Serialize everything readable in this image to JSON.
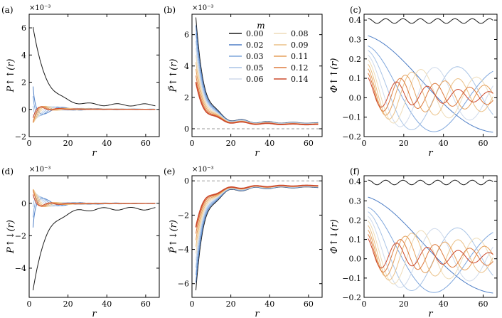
{
  "chart_data": [
    {
      "id": "a",
      "panel_label": "(a)",
      "type": "line",
      "ylabel": "P↑↑(r)",
      "xlabel": "r",
      "xlim": [
        0,
        67
      ],
      "ylim": [
        -2,
        7
      ],
      "xticks": [
        "0",
        "20",
        "40",
        "60"
      ],
      "yticks": [
        "−2",
        "0",
        "2",
        "4",
        "6"
      ],
      "sci": "×10⁻³",
      "model": "corr",
      "params": {
        "amp0": 6.0,
        "gamma": 1.4,
        "k0": 0.3,
        "kstep": 0.37,
        "tail": 0.33,
        "osc": 0.5
      }
    },
    {
      "id": "b",
      "panel_label": "(b)",
      "type": "line",
      "ylabel": "P̃↑↑(r)",
      "xlabel": "r",
      "xlim": [
        0,
        67
      ],
      "ylim": [
        -0.5,
        7.3
      ],
      "xticks": [
        "0",
        "20",
        "40",
        "60"
      ],
      "yticks": [
        "0",
        "2",
        "4",
        "6"
      ],
      "sci": "×10⁻³",
      "model": "smooth",
      "sign": 1,
      "params": {
        "start": 7.2,
        "base": 0.3,
        "gamma": 2.0,
        "spread": 0.07,
        "osc": 0.25
      }
    },
    {
      "id": "c",
      "panel_label": "(c)",
      "type": "line",
      "ylabel": "Φ↑↑(r)",
      "xlabel": "r",
      "xlim": [
        0,
        67
      ],
      "ylim": [
        -0.2,
        0.43
      ],
      "xticks": [
        "0",
        "20",
        "40",
        "60"
      ],
      "yticks": [
        "−0.2",
        "−0.1",
        "0.0",
        "0.1",
        "0.2",
        "0.3",
        "0.4"
      ],
      "sci": "",
      "model": "phi"
    },
    {
      "id": "d",
      "panel_label": "(d)",
      "type": "line",
      "ylabel": "P↑↓(r)",
      "xlabel": "r",
      "xlim": [
        0,
        67
      ],
      "ylim": [
        -5.8,
        1.7
      ],
      "xticks": [
        "0",
        "20",
        "40",
        "60"
      ],
      "yticks": [
        "−4",
        "−2",
        "0"
      ],
      "sci": "×10⁻³",
      "model": "corr",
      "params": {
        "amp0": -5.3,
        "gamma": 1.4,
        "k0": 0.3,
        "kstep": 0.37,
        "tail": -0.33,
        "osc": 0.5
      }
    },
    {
      "id": "e",
      "panel_label": "(e)",
      "type": "line",
      "ylabel": "P̃↑↓(r)",
      "xlabel": "r",
      "xlim": [
        0,
        67
      ],
      "ylim": [
        -6.8,
        0.3
      ],
      "xticks": [
        "0",
        "20",
        "40",
        "60"
      ],
      "yticks": [
        "−6",
        "−4",
        "−2",
        "0"
      ],
      "sci": "×10⁻³",
      "model": "smooth",
      "sign": -1,
      "params": {
        "start": 6.4,
        "base": 0.3,
        "gamma": 2.0,
        "spread": 0.07,
        "osc": 0.25
      }
    },
    {
      "id": "f",
      "panel_label": "(f)",
      "type": "line",
      "ylabel": "Φ↑↓(r)",
      "xlabel": "r",
      "xlim": [
        0,
        67
      ],
      "ylim": [
        -0.2,
        0.43
      ],
      "xticks": [
        "0",
        "20",
        "40",
        "60"
      ],
      "yticks": [
        "−0.2",
        "−0.1",
        "0.0",
        "0.1",
        "0.2",
        "0.3",
        "0.4"
      ],
      "sci": "",
      "model": "phi"
    }
  ],
  "legend": {
    "title": "m",
    "series": [
      {
        "label": "0.00",
        "color": "#1a1a1a"
      },
      {
        "label": "0.02",
        "color": "#4f7fc6"
      },
      {
        "label": "0.03",
        "color": "#7ea6dc"
      },
      {
        "label": "0.05",
        "color": "#a9c4e6"
      },
      {
        "label": "0.06",
        "color": "#cfdaeb"
      },
      {
        "label": "0.08",
        "color": "#eedcb8"
      },
      {
        "label": "0.09",
        "color": "#ebc187"
      },
      {
        "label": "0.11",
        "color": "#e6a15c"
      },
      {
        "label": "0.12",
        "color": "#dd7b3e"
      },
      {
        "label": "0.14",
        "color": "#cc4a2c"
      }
    ]
  }
}
